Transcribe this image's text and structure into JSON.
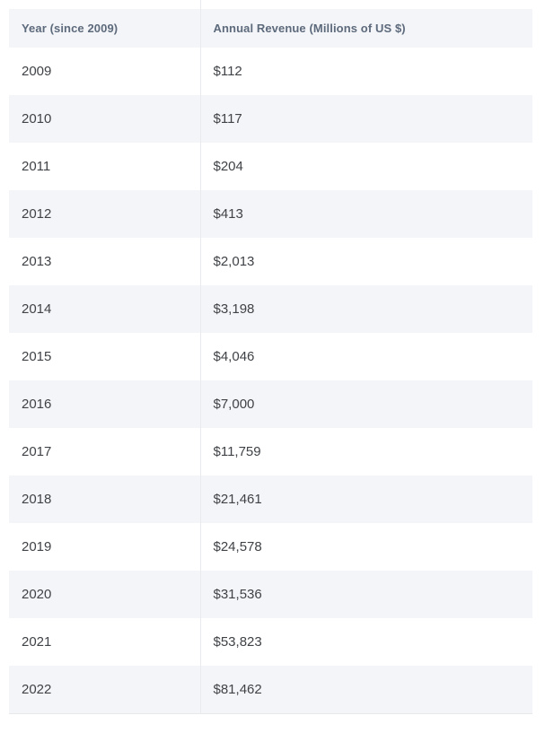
{
  "table": {
    "columns": [
      {
        "label": "Year (since 2009)"
      },
      {
        "label": "Annual Revenue (Millions of US $)"
      }
    ],
    "rows": [
      {
        "year": "2009",
        "revenue": "$112"
      },
      {
        "year": "2010",
        "revenue": "$117"
      },
      {
        "year": "2011",
        "revenue": "$204"
      },
      {
        "year": "2012",
        "revenue": "$413"
      },
      {
        "year": "2013",
        "revenue": "$2,013"
      },
      {
        "year": "2014",
        "revenue": "$3,198"
      },
      {
        "year": "2015",
        "revenue": "$4,046"
      },
      {
        "year": "2016",
        "revenue": "$7,000"
      },
      {
        "year": "2017",
        "revenue": "$11,759"
      },
      {
        "year": "2018",
        "revenue": "$21,461"
      },
      {
        "year": "2019",
        "revenue": "$24,578"
      },
      {
        "year": "2020",
        "revenue": "$31,536"
      },
      {
        "year": "2021",
        "revenue": "$53,823"
      },
      {
        "year": "2022",
        "revenue": "$81,462"
      }
    ]
  },
  "colors": {
    "page_bg": "#ffffff",
    "header_bg": "#f4f5f8",
    "header_text": "#5d6a7c",
    "row_bg": "#ffffff",
    "row_alt_bg": "#f4f5f9",
    "body_text": "#3f4246",
    "divider": "#e8eaee",
    "border_bottom": "#e7e8ea"
  },
  "chart_data": {
    "type": "table",
    "columns": [
      "Year (since 2009)",
      "Annual Revenue (Millions of US $)"
    ],
    "years": [
      2009,
      2010,
      2011,
      2012,
      2013,
      2014,
      2015,
      2016,
      2017,
      2018,
      2019,
      2020,
      2021,
      2022
    ],
    "revenue_millions_usd": [
      112,
      117,
      204,
      413,
      2013,
      3198,
      4046,
      7000,
      11759,
      21461,
      24578,
      31536,
      53823,
      81462
    ],
    "rows": [
      [
        "2009",
        "$112"
      ],
      [
        "2010",
        "$117"
      ],
      [
        "2011",
        "$204"
      ],
      [
        "2012",
        "$413"
      ],
      [
        "2013",
        "$2,013"
      ],
      [
        "2014",
        "$3,198"
      ],
      [
        "2015",
        "$4,046"
      ],
      [
        "2016",
        "$7,000"
      ],
      [
        "2017",
        "$11,759"
      ],
      [
        "2018",
        "$21,461"
      ],
      [
        "2019",
        "$24,578"
      ],
      [
        "2020",
        "$31,536"
      ],
      [
        "2021",
        "$53,823"
      ],
      [
        "2022",
        "$81,462"
      ]
    ],
    "title": "",
    "layout": {
      "grid": false,
      "legend": "none",
      "striped_rows": true
    }
  }
}
